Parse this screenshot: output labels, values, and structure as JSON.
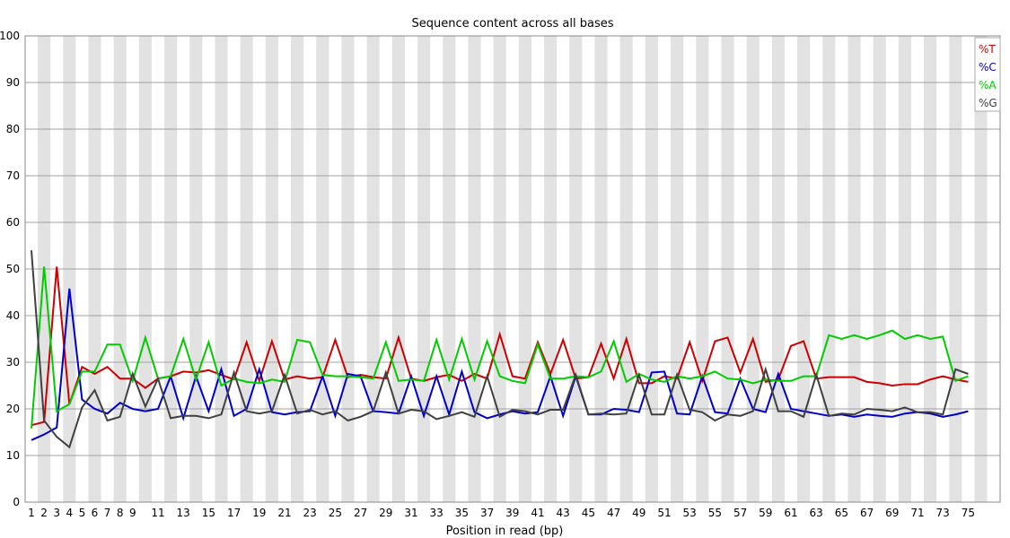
{
  "chart_data": {
    "type": "line",
    "title": "Sequence content across all bases",
    "xlabel": "Position in read (bp)",
    "ylabel": "",
    "ylim": [
      0,
      100
    ],
    "yticks": [
      0,
      10,
      20,
      30,
      40,
      50,
      60,
      70,
      80,
      90,
      100
    ],
    "grid": true,
    "legend_position": "top-right",
    "x": [
      1,
      2,
      3,
      4,
      5,
      6,
      7,
      8,
      9,
      10,
      11,
      12,
      13,
      14,
      15,
      16,
      17,
      18,
      19,
      20,
      21,
      22,
      23,
      24,
      25,
      26,
      27,
      28,
      29,
      30,
      31,
      32,
      33,
      34,
      35,
      36,
      37,
      38,
      39,
      40,
      41,
      42,
      43,
      44,
      45,
      46,
      47,
      48,
      49,
      50,
      51,
      52,
      53,
      54,
      55,
      56,
      57,
      58,
      59,
      60,
      61,
      62,
      63,
      64,
      65,
      66,
      67,
      68,
      69,
      70,
      71,
      72,
      73,
      74,
      75
    ],
    "x_tick_labels": [
      "1",
      "2",
      "3",
      "4",
      "5",
      "6",
      "7",
      "8",
      "9",
      "11",
      "13",
      "15",
      "17",
      "19",
      "21",
      "23",
      "25",
      "27",
      "29",
      "31",
      "33",
      "35",
      "37",
      "39",
      "41",
      "43",
      "45",
      "47",
      "49",
      "51",
      "53",
      "55",
      "57",
      "59",
      "61",
      "63",
      "65",
      "67",
      "69",
      "71",
      "73",
      "75"
    ],
    "series": [
      {
        "name": "%T",
        "color": "#cc0000",
        "values": [
          16.5,
          17.2,
          50.5,
          21,
          29,
          27.5,
          29,
          26.5,
          26.5,
          24.5,
          26.5,
          27,
          28,
          27.8,
          28.3,
          27.3,
          26.3,
          34.3,
          26,
          34.5,
          26.3,
          27,
          26.5,
          26.8,
          34.8,
          26.8,
          27.3,
          26.8,
          26.5,
          35.3,
          26.5,
          26,
          26.8,
          27.3,
          26,
          27.5,
          26.5,
          36,
          27,
          26.5,
          34.3,
          27.5,
          34.8,
          26.5,
          26.8,
          34,
          26.5,
          35,
          25.5,
          25.5,
          27,
          26.5,
          34.3,
          26,
          34.5,
          35.3,
          27.8,
          35,
          25.8,
          26.3,
          33.5,
          34.5,
          26.5,
          26.8,
          26.8,
          26.8,
          25.8,
          25.5,
          25,
          25.3,
          25.3,
          26.3,
          27,
          26.3,
          25.8
        ]
      },
      {
        "name": "%C",
        "color": "#0000cc",
        "values": [
          13.3,
          14.5,
          16,
          45.8,
          22,
          20,
          19,
          21.3,
          20,
          19.5,
          20,
          27,
          18,
          27,
          19.5,
          28.5,
          18.5,
          20,
          28.5,
          19.3,
          18.8,
          19.3,
          19.5,
          27,
          18.5,
          27.5,
          27,
          19.5,
          19.3,
          19,
          27,
          18.5,
          27,
          18.8,
          28,
          19.3,
          18,
          18.8,
          19.5,
          19,
          19.3,
          27,
          18.5,
          27,
          18.8,
          18.8,
          20,
          19.8,
          19.3,
          27.8,
          28,
          19,
          18.8,
          27,
          19.3,
          19,
          26.5,
          20,
          19.3,
          27.5,
          20,
          19.5,
          19,
          18.5,
          18.8,
          18.3,
          18.8,
          18.5,
          18.3,
          19,
          19.3,
          19,
          18.3,
          18.8,
          19.5
        ]
      },
      {
        "name": "%A",
        "color": "#00cc00",
        "values": [
          15.8,
          50.5,
          19.5,
          21,
          28,
          28,
          33.8,
          33.8,
          26,
          35.3,
          26.5,
          27,
          35,
          26.3,
          34.3,
          25,
          26.5,
          25.8,
          25.5,
          26.3,
          25.8,
          34.8,
          34.3,
          27.3,
          27,
          27,
          26.8,
          26.5,
          34.3,
          26,
          26.3,
          26,
          34.8,
          26.3,
          35,
          26.3,
          34.5,
          27,
          26,
          25.5,
          33.8,
          26.5,
          26.5,
          27,
          26.8,
          28,
          34.5,
          25.8,
          27.5,
          26.3,
          25.8,
          27,
          26.5,
          27,
          28,
          26.5,
          26.3,
          25.5,
          26.3,
          26,
          26,
          27,
          27,
          35.8,
          35,
          35.8,
          35,
          35.8,
          36.8,
          35,
          35.8,
          35,
          35.5,
          26,
          27
        ]
      },
      {
        "name": "%G",
        "color": "#404040",
        "values": [
          54,
          17.5,
          14,
          11.8,
          20.3,
          24,
          17.5,
          18.3,
          27.5,
          20.5,
          26.5,
          18,
          18.5,
          18.5,
          18,
          18.8,
          27.8,
          19.5,
          19,
          19.5,
          27.3,
          19,
          19.8,
          18.8,
          19.5,
          17.5,
          18.3,
          19.5,
          27.8,
          19,
          19.8,
          19.5,
          17.8,
          18.5,
          19.3,
          18.3,
          27,
          18.3,
          19.8,
          19.5,
          18.8,
          19.8,
          19.8,
          27.3,
          18.8,
          19,
          18.8,
          19,
          27.3,
          18.8,
          18.8,
          27.3,
          19.8,
          19.3,
          17.5,
          18.8,
          18.5,
          19.5,
          28.5,
          19.5,
          19.5,
          18.3,
          27.3,
          18.5,
          19,
          18.8,
          20,
          19.8,
          19.5,
          20.3,
          19.3,
          19.3,
          18.8,
          28.5,
          27.5
        ]
      }
    ]
  }
}
